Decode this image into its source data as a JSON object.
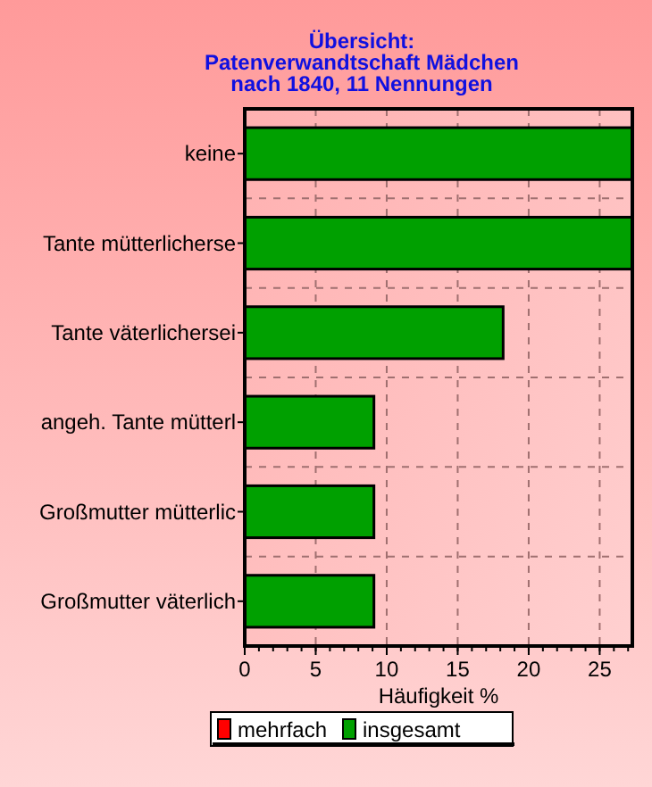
{
  "chart_data": {
    "type": "bar",
    "orientation": "horizontal",
    "title": "Übersicht:\nPatenverwandtschaft Mädchen\nnach 1840, 11 Nennungen",
    "xlabel": "Häufigkeit %",
    "categories": [
      "keine",
      "Tante mütterlicherse",
      "Tante väterlichersei",
      "angeh. Tante mütterl",
      "Großmutter mütterlic",
      "Großmutter väterlich"
    ],
    "series": [
      {
        "name": "mehrfach",
        "color": "#ff0000",
        "values": [
          null,
          null,
          null,
          null,
          null,
          null
        ]
      },
      {
        "name": "insgesamt",
        "color": "#00a000",
        "values": [
          27.3,
          27.3,
          18.2,
          9.1,
          9.1,
          9.1
        ]
      }
    ],
    "xlim": [
      0,
      27.3
    ],
    "xticks": [
      0,
      5,
      10,
      15,
      20,
      25
    ],
    "grid": true,
    "legend": "bottom"
  }
}
